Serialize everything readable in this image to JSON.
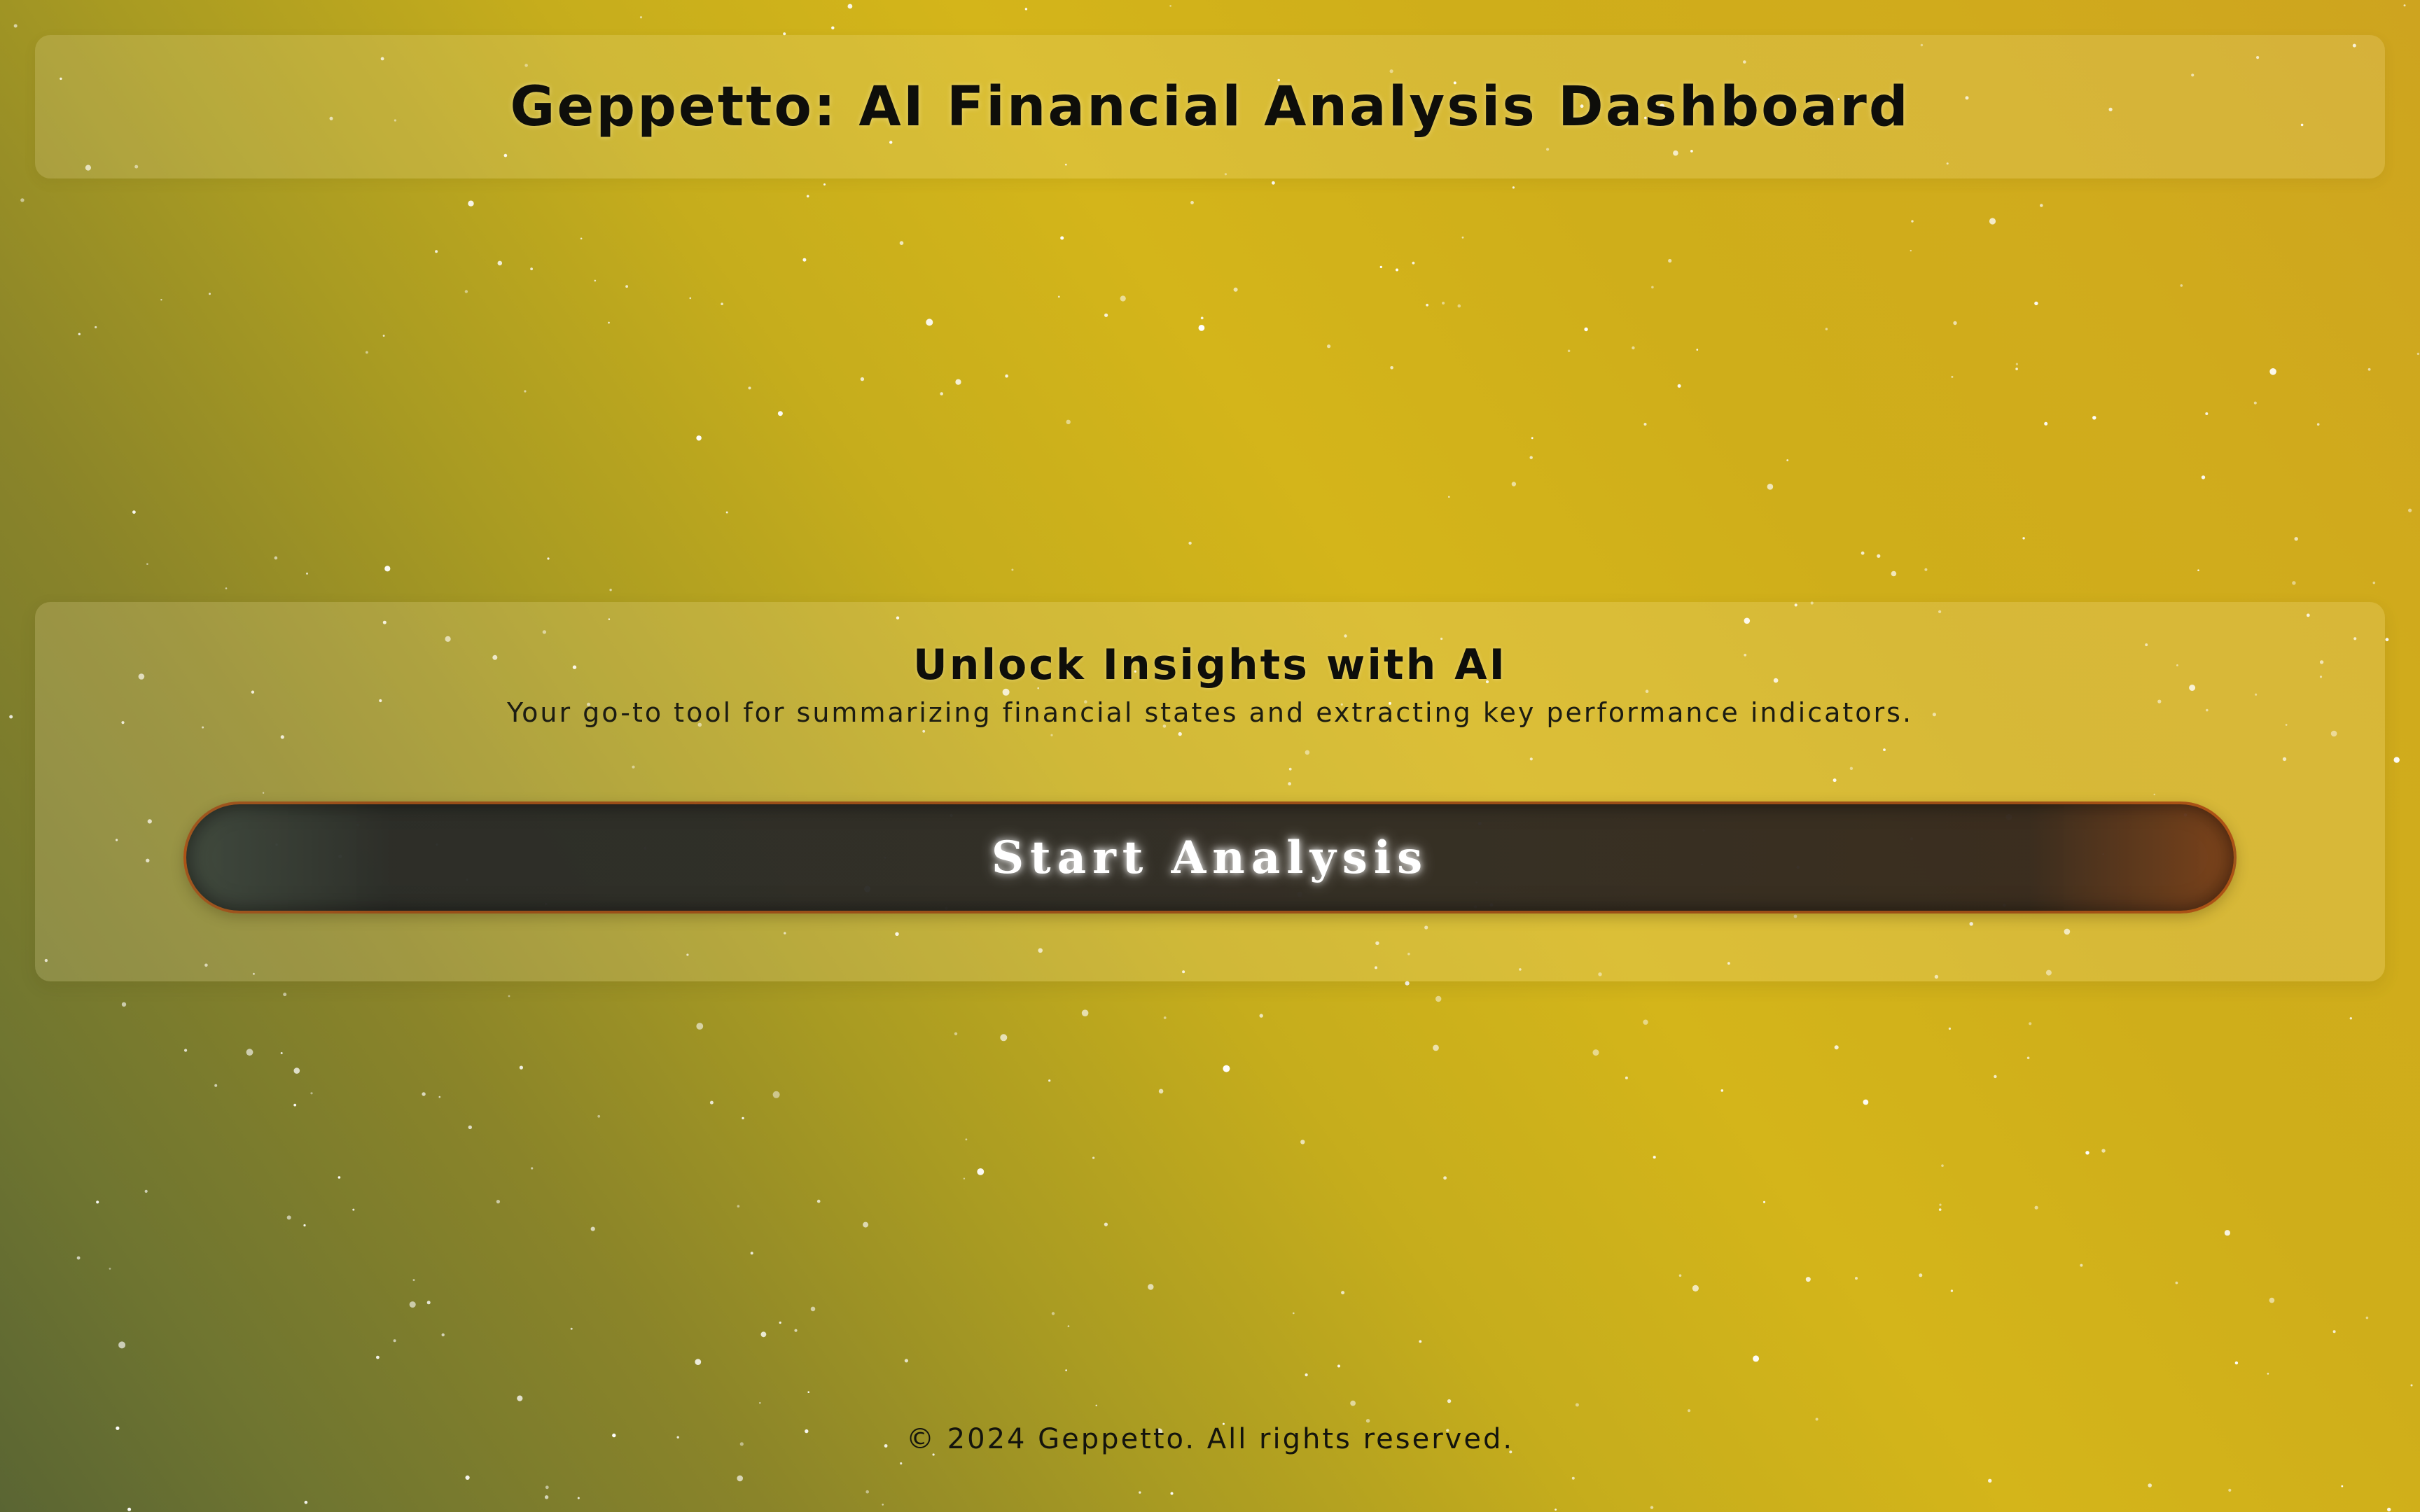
{
  "header": {
    "title": "Geppetto: AI Financial Analysis Dashboard"
  },
  "hero": {
    "heading": "Unlock Insights with AI",
    "subtitle": "Your go-to tool for summarizing financial states and extracting key performance indicators.",
    "start_button_label": "Start Analysis"
  },
  "footer": {
    "copyright": "© 2024 Geppetto. All rights reserved."
  },
  "colors": {
    "background_primary": "#d4b51a",
    "background_dark_corner": "#5a6533",
    "button_fill": "#2e2c28",
    "button_border": "#be5a14",
    "text_primary": "#0e0e0a",
    "star": "#ffffff"
  }
}
